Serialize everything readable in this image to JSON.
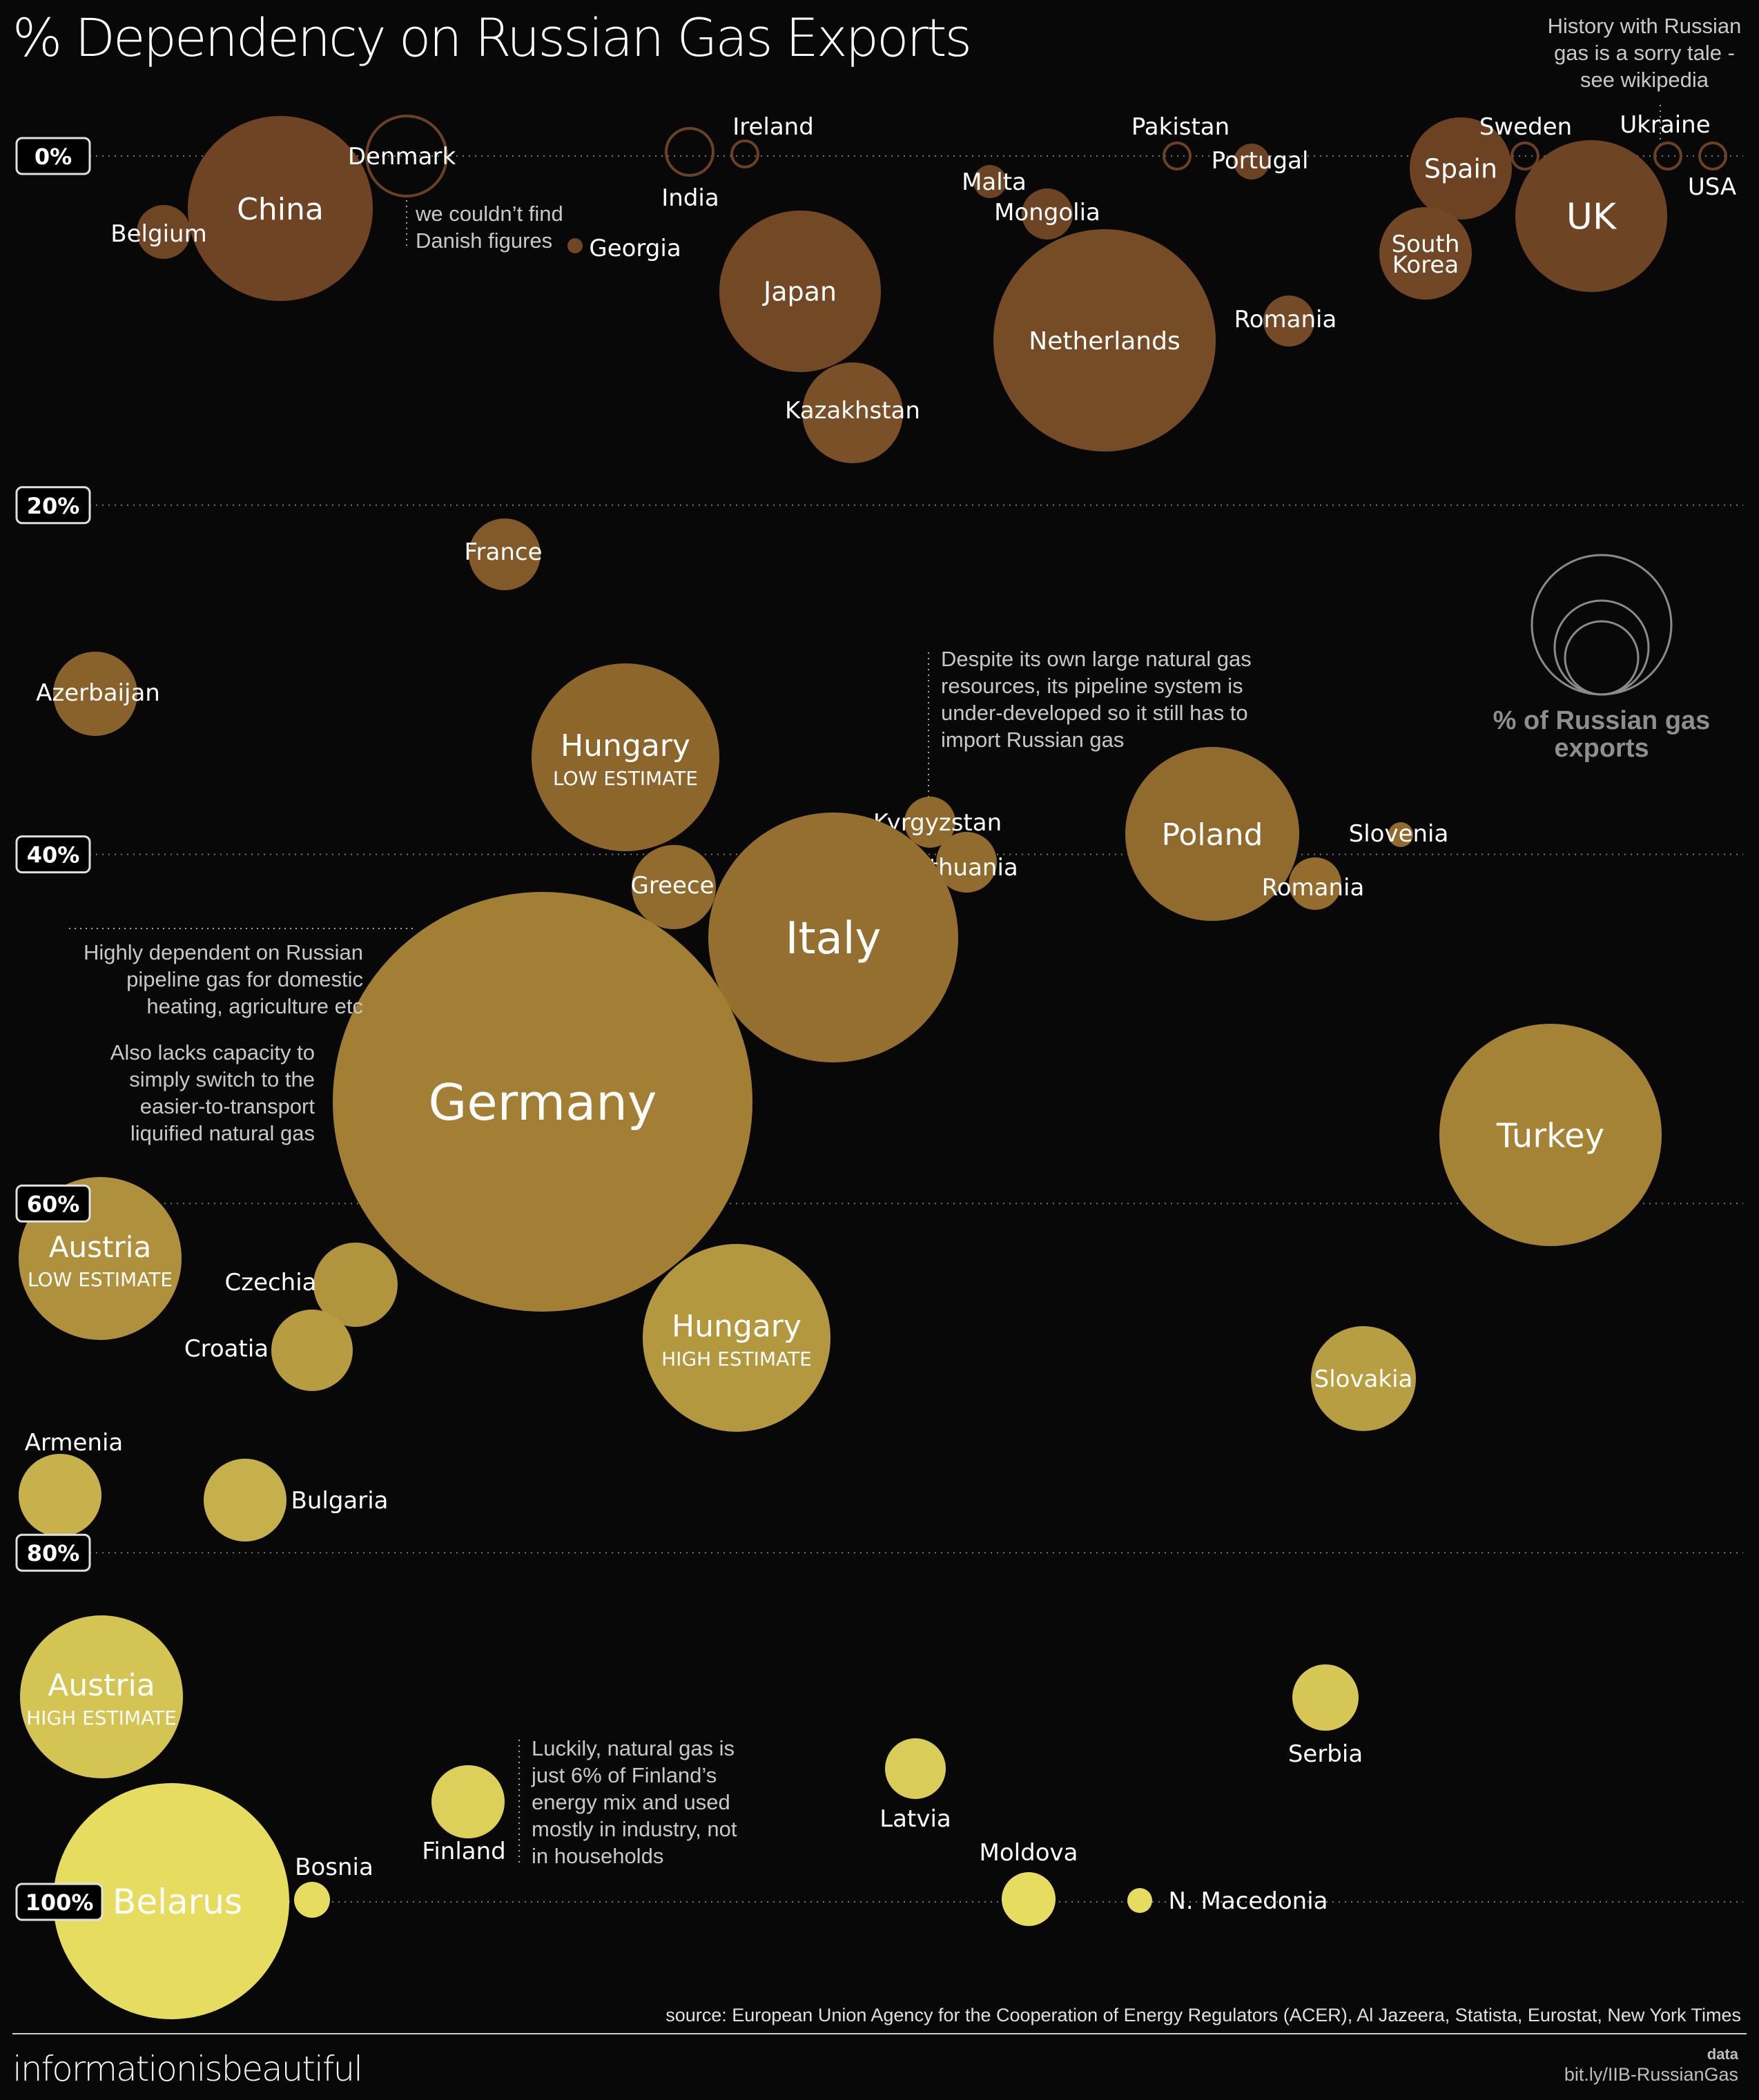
{
  "chart_data": {
    "type": "bubble",
    "title": "% Dependency on Russian Gas Exports",
    "y_axis": {
      "ticks": [
        "0%",
        "20%",
        "40%",
        "60%",
        "80%",
        "100%"
      ],
      "range": [
        0,
        100
      ],
      "unit": "%"
    },
    "size_legend": "% of Russian gas exports",
    "series": [
      {
        "name": "China",
        "dependency": 3
      },
      {
        "name": "Belgium",
        "dependency": 4.5
      },
      {
        "name": "Denmark",
        "dependency": 0
      },
      {
        "name": "Georgia",
        "dependency": 5.3
      },
      {
        "name": "India",
        "dependency": 0
      },
      {
        "name": "Ireland",
        "dependency": 0
      },
      {
        "name": "Japan",
        "dependency": 8
      },
      {
        "name": "Kazakhstan",
        "dependency": 15
      },
      {
        "name": "Malta",
        "dependency": 1.5
      },
      {
        "name": "Mongolia",
        "dependency": 3.5
      },
      {
        "name": "Netherlands",
        "dependency": 11
      },
      {
        "name": "Pakistan",
        "dependency": 0
      },
      {
        "name": "Portugal",
        "dependency": 0.5
      },
      {
        "name": "Romania",
        "dependency": 10
      },
      {
        "name": "Spain",
        "dependency": 0.8
      },
      {
        "name": "South Korea",
        "dependency": 6
      },
      {
        "name": "Sweden",
        "dependency": 0
      },
      {
        "name": "Ukraine",
        "dependency": 0
      },
      {
        "name": "USA",
        "dependency": 0
      },
      {
        "name": "UK",
        "dependency": 3.5
      },
      {
        "name": "France",
        "dependency": 24
      },
      {
        "name": "Azerbaijan",
        "dependency": 32
      },
      {
        "name": "Hungary",
        "sub": "LOW ESTIMATE",
        "dependency": 36
      },
      {
        "name": "Kyrgyzstan",
        "dependency": 39
      },
      {
        "name": "Lithuania",
        "dependency": 41
      },
      {
        "name": "Greece",
        "dependency": 42
      },
      {
        "name": "Italy",
        "dependency": 45
      },
      {
        "name": "Poland",
        "dependency": 40
      },
      {
        "name": "Slovenia",
        "dependency": 40
      },
      {
        "name": "Romania",
        "dependency": 42.5
      },
      {
        "name": "Germany",
        "dependency": 55
      },
      {
        "name": "Turkey",
        "dependency": 56.5
      },
      {
        "name": "Austria",
        "sub": "LOW ESTIMATE",
        "dependency": 64
      },
      {
        "name": "Czechia",
        "dependency": 65
      },
      {
        "name": "Croatia",
        "dependency": 69
      },
      {
        "name": "Hungary",
        "sub": "HIGH ESTIMATE",
        "dependency": 67
      },
      {
        "name": "Slovakia",
        "dependency": 70
      },
      {
        "name": "Armenia",
        "dependency": 79
      },
      {
        "name": "Bulgaria",
        "dependency": 78.5
      },
      {
        "name": "Austria",
        "sub": "HIGH ESTIMATE",
        "dependency": 88
      },
      {
        "name": "Serbia",
        "dependency": 89
      },
      {
        "name": "Finland",
        "dependency": 94
      },
      {
        "name": "Latvia",
        "dependency": 92
      },
      {
        "name": "Belarus",
        "dependency": 100
      },
      {
        "name": "Bosnia",
        "dependency": 100
      },
      {
        "name": "Moldova",
        "dependency": 100
      },
      {
        "name": "N. Macedonia",
        "dependency": 100
      }
    ]
  },
  "annotations": {
    "sweden_note": "History with Russian\ngas is a sorry tale -\nsee wikipedia",
    "denmark_note": "we couldn’t find\nDanish figures",
    "poland_note": "Despite its own large natural gas\nresources, its pipeline system is\nunder-developed so it still has to\nimport Russian gas",
    "germany_note_1": "Highly dependent on Russian\npipeline gas for domestic\nheating, agriculture etc",
    "germany_note_2": "Also lacks capacity to\nsimply switch to the\neasier-to-transport\nliquified natural gas",
    "finland_note": "Luckily, natural gas is\njust 6% of Finland’s\nenergy mix and used\nmostly in industry, not\nin households"
  },
  "colors": {
    "low": "#6b4123",
    "mid": "#9a7430",
    "high": "#e6dd60",
    "background": "#080808"
  },
  "footer": {
    "source": "source: European Union Agency for the Cooperation of Energy Regulators (ACER), Al Jazeera, Statista, Eurostat, New York Times",
    "brand": "informationisbeautiful",
    "data_label": "data",
    "data_link": "bit.ly/IIB-RussianGas"
  }
}
